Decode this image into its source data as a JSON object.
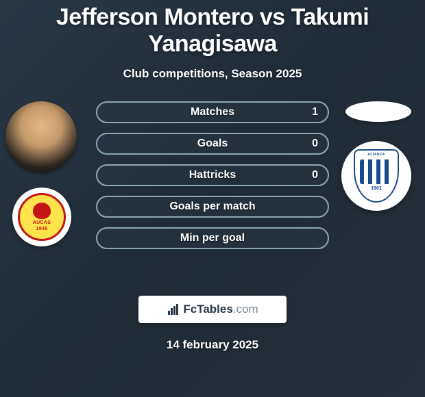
{
  "title": "Jefferson Montero vs Takumi Yanagisawa",
  "subtitle": "Club competitions, Season 2025",
  "date": "14 february 2025",
  "branding": {
    "name_main": "FcTables",
    "name_suffix": ".com"
  },
  "left": {
    "club_name": "AUCAS",
    "club_year": "1945"
  },
  "right": {
    "club_top": "ALIANZA",
    "club_year": "1901"
  },
  "stats": [
    {
      "label": "Matches",
      "right_value": "1"
    },
    {
      "label": "Goals",
      "right_value": "0"
    },
    {
      "label": "Hattricks",
      "right_value": "0"
    },
    {
      "label": "Goals per match",
      "right_value": ""
    },
    {
      "label": "Min per goal",
      "right_value": ""
    }
  ],
  "style": {
    "title_fontsize": 34,
    "subtitle_fontsize": 17,
    "stat_label_fontsize": 16,
    "stat_border_color": "#8fa8b5",
    "stat_border_radius": 16,
    "background_gradient": [
      "#2a3845",
      "#1f2b36",
      "#252f3a"
    ],
    "text_color": "#ffffff",
    "branding_bg": "#ffffff",
    "branding_text_color": "#2a3845",
    "branding_suffix_color": "#7a8a95",
    "club_left_bg": "#ffe34d",
    "club_left_accent": "#c41515",
    "club_right_accent": "#1a4a8a"
  }
}
